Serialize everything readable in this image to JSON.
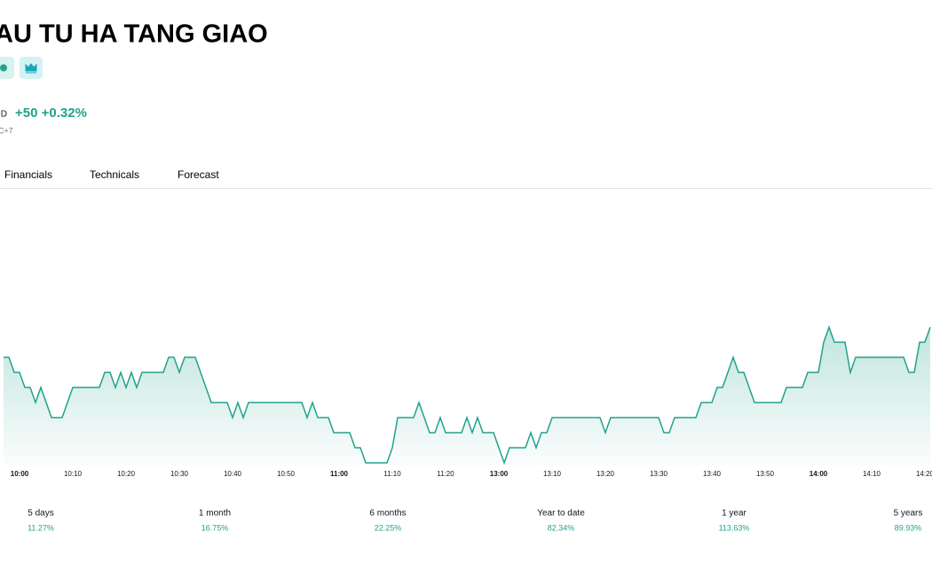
{
  "header": {
    "title": "AU TU HA TANG GIAO",
    "currency": "ID",
    "change": "+50 +0.32%",
    "timezone": "C+7"
  },
  "tabs": [
    "Financials",
    "Technicals",
    "Forecast"
  ],
  "chart_data": {
    "type": "area",
    "color": "#22a28c",
    "x": [
      "9:57",
      "9:58",
      "9:59",
      "10:00",
      "10:01",
      "10:02",
      "10:03",
      "10:04",
      "10:06",
      "10:08",
      "10:10",
      "10:15",
      "10:16",
      "10:17",
      "10:18",
      "10:19",
      "10:20",
      "10:21",
      "10:22",
      "10:23",
      "10:27",
      "10:28",
      "10:29",
      "10:30",
      "10:31",
      "10:33",
      "10:36",
      "10:39",
      "10:40",
      "10:41",
      "10:42",
      "10:43",
      "10:53",
      "10:54",
      "10:55",
      "10:56",
      "10:58",
      "10:59",
      "11:02",
      "11:03",
      "11:04",
      "11:05",
      "11:09",
      "11:10",
      "11:11",
      "11:14",
      "11:15",
      "11:16",
      "11:17",
      "11:18",
      "11:19",
      "11:20",
      "11:23",
      "11:24",
      "11:25",
      "11:26",
      "11:27",
      "11:29",
      "13:01",
      "13:02",
      "13:05",
      "13:06",
      "13:07",
      "13:08",
      "13:09",
      "13:10",
      "13:19",
      "13:20",
      "13:21",
      "13:30",
      "13:31",
      "13:32",
      "13:33",
      "13:37",
      "13:38",
      "13:40",
      "13:41",
      "13:42",
      "13:44",
      "13:45",
      "13:46",
      "13:48",
      "13:53",
      "13:54",
      "13:57",
      "13:58",
      "14:00",
      "14:01",
      "14:02",
      "14:03",
      "14:05",
      "14:06",
      "14:07",
      "14:16",
      "14:17",
      "14:18",
      "14:19",
      "14:20",
      "14:21"
    ],
    "values": [
      15700,
      15700,
      15650,
      15650,
      15600,
      15600,
      15550,
      15600,
      15500,
      15500,
      15600,
      15600,
      15650,
      15650,
      15600,
      15650,
      15600,
      15650,
      15600,
      15650,
      15650,
      15700,
      15700,
      15650,
      15700,
      15700,
      15550,
      15550,
      15500,
      15550,
      15500,
      15550,
      15550,
      15500,
      15550,
      15500,
      15500,
      15450,
      15450,
      15400,
      15400,
      15350,
      15350,
      15400,
      15500,
      15500,
      15550,
      15500,
      15450,
      15450,
      15500,
      15450,
      15450,
      15500,
      15450,
      15500,
      15450,
      15450,
      15350,
      15400,
      15400,
      15450,
      15400,
      15450,
      15450,
      15500,
      15500,
      15450,
      15500,
      15500,
      15450,
      15450,
      15500,
      15500,
      15550,
      15550,
      15600,
      15600,
      15700,
      15650,
      15650,
      15550,
      15550,
      15600,
      15600,
      15650,
      15650,
      15750,
      15800,
      15750,
      15750,
      15650,
      15700,
      15700,
      15650,
      15650,
      15750,
      15750,
      15800
    ],
    "ylim": [
      15350,
      15800
    ],
    "xticks": [
      "10:00",
      "10:10",
      "10:20",
      "10:30",
      "10:40",
      "10:50",
      "11:00",
      "11:10",
      "11:20",
      "13:00",
      "13:10",
      "13:20",
      "13:30",
      "13:40",
      "13:50",
      "14:00",
      "14:10",
      "14:20"
    ]
  },
  "periods": [
    {
      "label": "5 days",
      "change": "11.27%"
    },
    {
      "label": "1 month",
      "change": "16.75%"
    },
    {
      "label": "6 months",
      "change": "22.25%"
    },
    {
      "label": "Year to date",
      "change": "82.34%"
    },
    {
      "label": "1 year",
      "change": "113.63%"
    },
    {
      "label": "5 years",
      "change": "89.93%"
    }
  ]
}
